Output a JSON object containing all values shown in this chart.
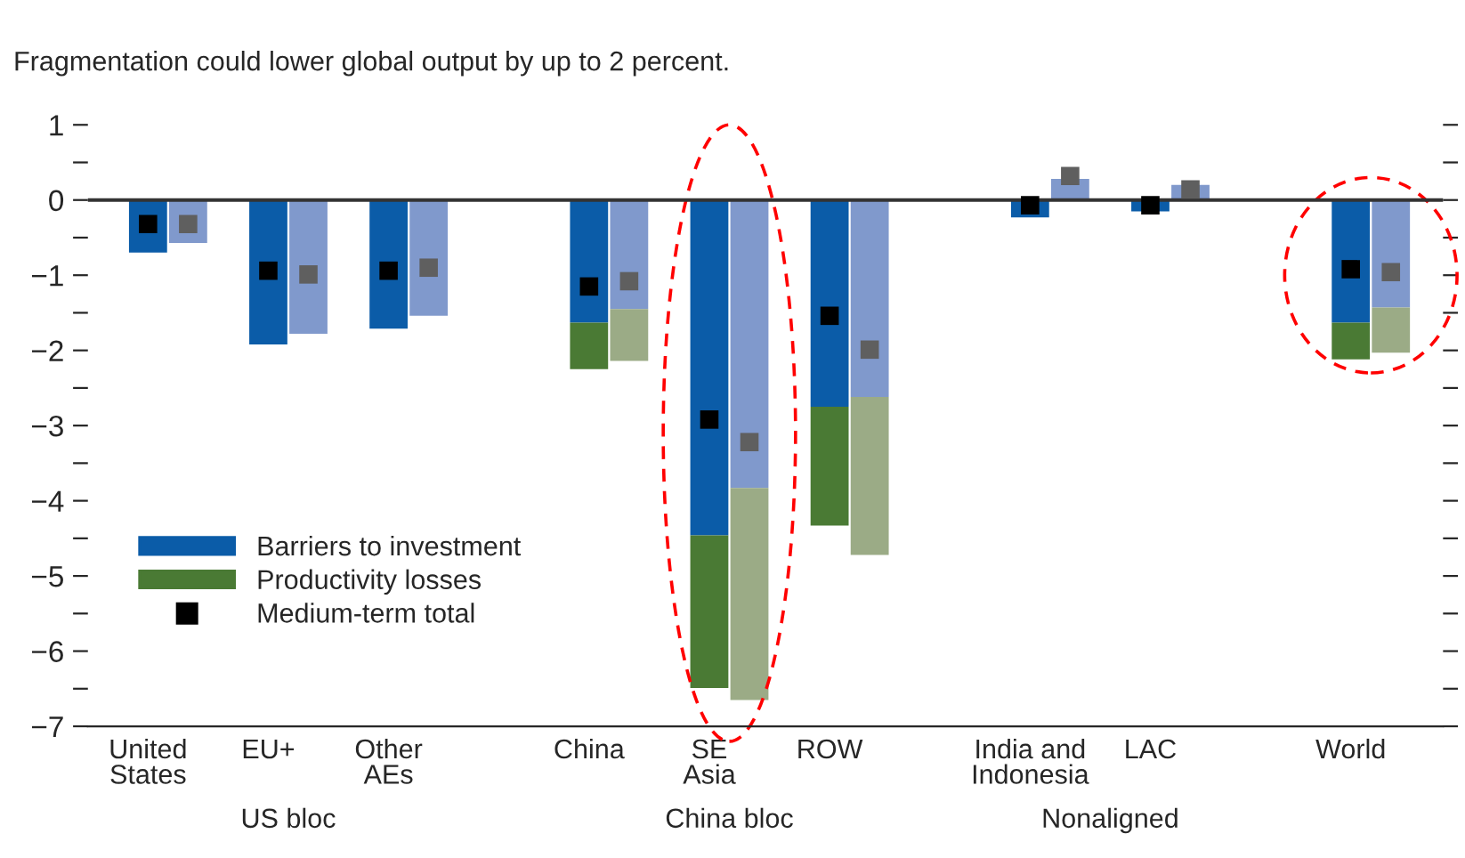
{
  "chart_data": {
    "type": "bar",
    "stacked": true,
    "title": "Fragmentation could lower global output by up to 2 percent.",
    "categories": [
      "United\nStates",
      null,
      null,
      "EU+",
      null,
      null,
      "Other\nAEs",
      null,
      null,
      null,
      null,
      "China",
      null,
      null,
      "SE\nAsia",
      null,
      null,
      "ROW",
      null,
      null,
      null,
      null,
      "India and\nIndonesia",
      null,
      null,
      "LAC",
      null,
      null,
      null,
      null,
      "World",
      null
    ],
    "series": [
      {
        "name": "Barriers to investment",
        "color": "#0b5ca8",
        "colors": [
          "#0b5ca8",
          "#8099cc",
          null,
          "#0b5ca8",
          "#8099cc",
          null,
          "#0b5ca8",
          "#8099cc",
          null,
          null,
          null,
          "#0b5ca8",
          "#8099cc",
          null,
          "#0b5ca8",
          "#8099cc",
          null,
          "#0b5ca8",
          "#8099cc",
          null,
          null,
          null,
          "#0b5ca8",
          "#8099cc",
          null,
          "#0b5ca8",
          "#8099cc",
          null,
          null,
          null,
          "#0b5ca8",
          "#8099cc"
        ],
        "values": [
          -0.7,
          -0.57,
          null,
          -1.92,
          -1.78,
          null,
          -1.71,
          -1.54,
          null,
          null,
          null,
          -1.63,
          -1.45,
          null,
          -4.46,
          -3.83,
          null,
          -2.75,
          -2.62,
          null,
          null,
          null,
          -0.23,
          0.28,
          null,
          -0.15,
          0.2,
          null,
          null,
          null,
          -1.63,
          -1.43
        ]
      },
      {
        "name": "Productivity losses",
        "color": "#4a7a34",
        "colors": [
          null,
          null,
          null,
          null,
          null,
          null,
          null,
          null,
          null,
          null,
          null,
          "#4a7a34",
          "#9bab86",
          null,
          "#4a7a34",
          "#9bab86",
          null,
          "#4a7a34",
          "#9bab86",
          null,
          null,
          null,
          null,
          null,
          null,
          null,
          null,
          null,
          null,
          null,
          "#4a7a34",
          "#9bab86"
        ],
        "values": [
          null,
          null,
          null,
          null,
          null,
          null,
          null,
          null,
          null,
          null,
          null,
          -0.62,
          -0.69,
          null,
          -2.03,
          -2.82,
          null,
          -1.58,
          -2.1,
          null,
          null,
          null,
          null,
          null,
          null,
          null,
          null,
          null,
          null,
          null,
          -0.49,
          -0.6
        ]
      },
      {
        "type": "scatter",
        "name": "Medium-term total",
        "color": "#000000",
        "colors": [
          "#000000",
          "#5f5f5f",
          null,
          "#000000",
          "#5f5f5f",
          null,
          "#000000",
          "#5f5f5f",
          null,
          null,
          null,
          "#000000",
          "#5f5f5f",
          null,
          "#000000",
          "#5f5f5f",
          null,
          "#000000",
          "#5f5f5f",
          null,
          null,
          null,
          "#000000",
          "#5f5f5f",
          null,
          "#000000",
          "#5f5f5f",
          null,
          null,
          null,
          "#000000",
          "#5f5f5f"
        ],
        "values": [
          -0.32,
          -0.32,
          null,
          -0.94,
          -0.99,
          null,
          -0.94,
          -0.9,
          null,
          null,
          null,
          -1.15,
          -1.08,
          null,
          -2.92,
          -3.22,
          null,
          -1.54,
          -1.99,
          null,
          null,
          null,
          -0.07,
          0.32,
          null,
          -0.07,
          0.14,
          null,
          null,
          null,
          -0.92,
          -0.96
        ]
      }
    ],
    "marker": "square",
    "ylim": [
      -7,
      1
    ],
    "yticks": [
      {
        "value": -7,
        "label": "−7"
      },
      {
        "value": -6.5,
        "label": null
      },
      {
        "value": -6,
        "label": "−6"
      },
      {
        "value": -5.5,
        "label": null
      },
      {
        "value": -5,
        "label": "−5"
      },
      {
        "value": -4.5,
        "label": null
      },
      {
        "value": -4,
        "label": "−4"
      },
      {
        "value": -3.5,
        "label": null
      },
      {
        "value": -3,
        "label": "−3"
      },
      {
        "value": -2.5,
        "label": null
      },
      {
        "value": -2,
        "label": "−2"
      },
      {
        "value": -1.5,
        "label": null
      },
      {
        "value": -1,
        "label": "−1"
      },
      {
        "value": -0.5,
        "label": null
      },
      0,
      {
        "value": 0.5,
        "label": null
      },
      1
    ],
    "ref_lines": [
      {
        "axis": "y",
        "value": 0,
        "color": "#333333"
      }
    ],
    "annotations": [
      "US bloc",
      "China bloc",
      "Nonaligned"
    ],
    "legend": "left"
  }
}
